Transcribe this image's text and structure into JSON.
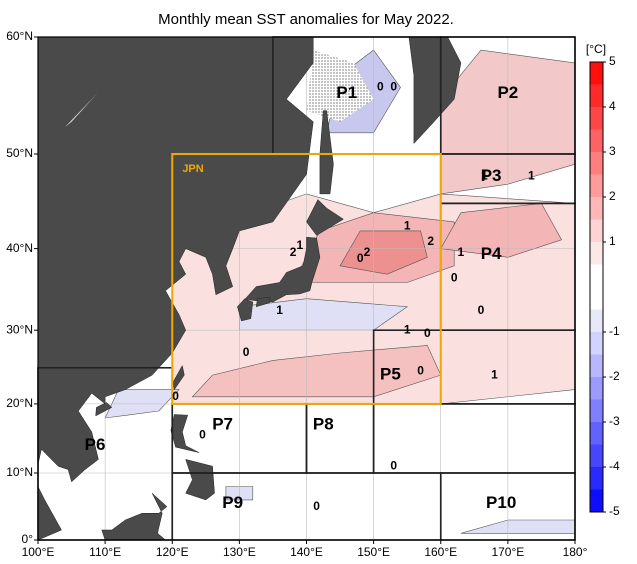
{
  "title": "Monthly mean SST anomalies for May 2022.",
  "map": {
    "lon_ticks": [
      {
        "value": 100,
        "label": "100°E"
      },
      {
        "value": 110,
        "label": "110°E"
      },
      {
        "value": 120,
        "label": "120°E"
      },
      {
        "value": 130,
        "label": "130°E"
      },
      {
        "value": 140,
        "label": "140°E"
      },
      {
        "value": 150,
        "label": "150°E"
      },
      {
        "value": 160,
        "label": "160°E"
      },
      {
        "value": 170,
        "label": "170°E"
      },
      {
        "value": 180,
        "label": "180°"
      }
    ],
    "lat_ticks": [
      {
        "value": 0,
        "label": "0°"
      },
      {
        "value": 10,
        "label": "10°N"
      },
      {
        "value": 20,
        "label": "20°N"
      },
      {
        "value": 30,
        "label": "30°N"
      },
      {
        "value": 40,
        "label": "40°N"
      },
      {
        "value": 50,
        "label": "50°N"
      },
      {
        "value": 60,
        "label": "60°N"
      }
    ],
    "regions": [
      "P1",
      "P2",
      "P3",
      "P4",
      "P5",
      "P6",
      "P7",
      "P8",
      "P9",
      "P10",
      "JPN"
    ],
    "contour_labels": [
      "0",
      "0",
      "1",
      "1",
      "2",
      "1",
      "2",
      "1",
      "2",
      "1",
      "0",
      "1",
      "1",
      "0",
      "0",
      "1",
      "0",
      "0",
      "0",
      "0",
      "0",
      "0",
      "0"
    ]
  },
  "colorbar": {
    "unit": "[°C]",
    "lim": [
      -5,
      5
    ],
    "ticks": [
      5,
      4,
      3,
      2,
      1,
      -1,
      -2,
      -3,
      -4,
      -5
    ]
  }
}
